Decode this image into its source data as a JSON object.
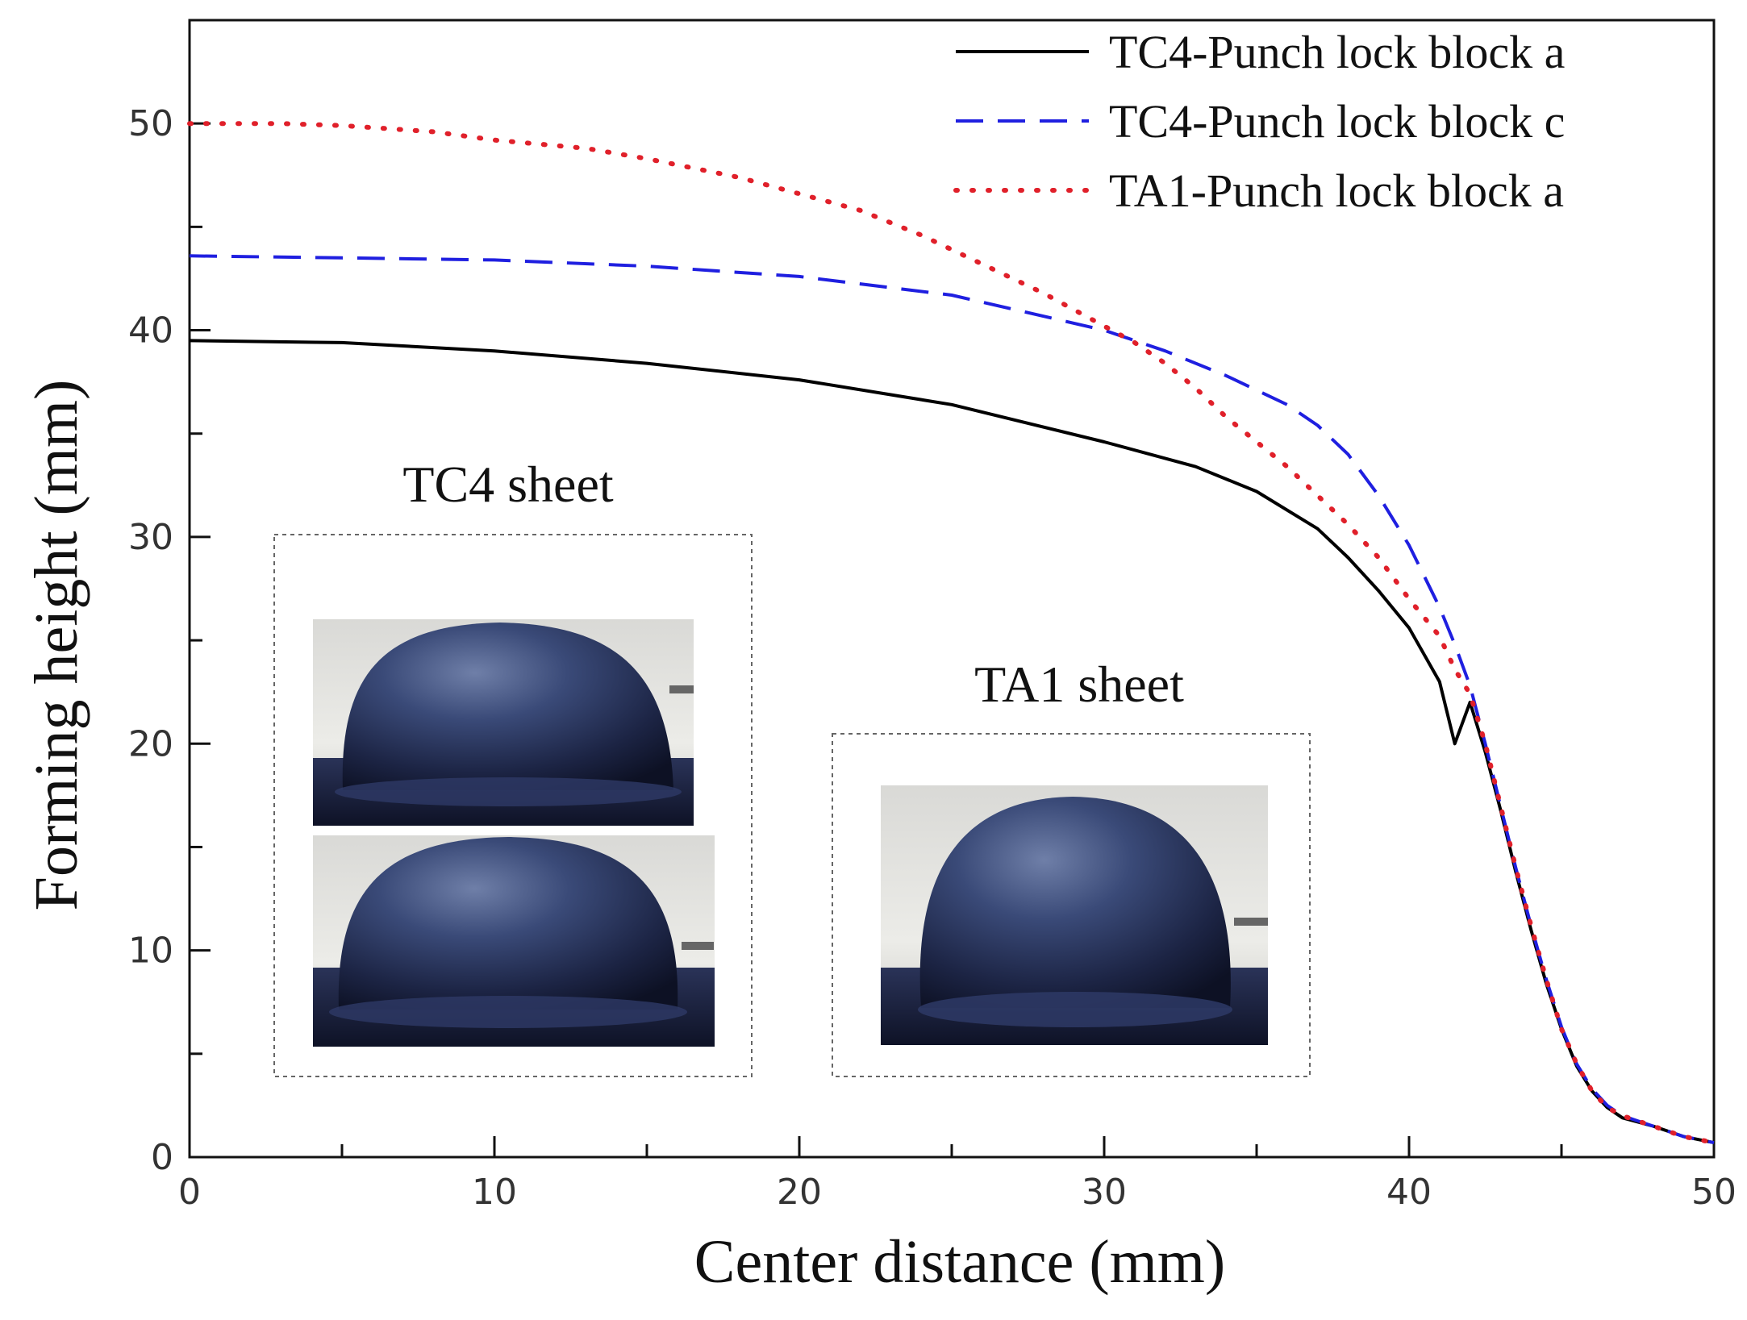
{
  "chart_data": {
    "type": "line",
    "xlabel": "Center distance (mm)",
    "ylabel": "Forming height (mm)",
    "xlim": [
      0,
      50
    ],
    "ylim": [
      0,
      55
    ],
    "xticks": [
      0,
      10,
      20,
      30,
      40,
      50
    ],
    "yticks": [
      0,
      10,
      20,
      30,
      40,
      50
    ],
    "grid": false,
    "legend_position": "top-right",
    "series": [
      {
        "name": "TC4-Punch lock block a",
        "color": "#000000",
        "style": "solid",
        "x": [
          0,
          5,
          10,
          15,
          20,
          25,
          30,
          33,
          35,
          37,
          38,
          39,
          40,
          41,
          41.5,
          42,
          42.5,
          43,
          43.5,
          44,
          44.5,
          45,
          45.5,
          46,
          46.5,
          47,
          48,
          49,
          50
        ],
        "y": [
          39.5,
          39.4,
          39.0,
          38.4,
          37.6,
          36.4,
          34.6,
          33.4,
          32.2,
          30.4,
          29.0,
          27.4,
          25.6,
          23.0,
          20.0,
          22.0,
          19.6,
          16.8,
          13.8,
          11.0,
          8.4,
          6.2,
          4.4,
          3.2,
          2.4,
          1.9,
          1.5,
          1.0,
          0.7
        ]
      },
      {
        "name": "TC4-Punch lock block c",
        "color": "#1f1fe0",
        "style": "dashed",
        "x": [
          0,
          5,
          10,
          15,
          20,
          25,
          30,
          32,
          34,
          36,
          37,
          38,
          39,
          40,
          41,
          41.5,
          42,
          42.5,
          43,
          43.5,
          44,
          44.5,
          45,
          45.5,
          46,
          46.5,
          47,
          48,
          49,
          50
        ],
        "y": [
          43.6,
          43.5,
          43.4,
          43.1,
          42.6,
          41.7,
          40.0,
          39.0,
          37.8,
          36.4,
          35.4,
          34.0,
          32.0,
          29.6,
          26.6,
          24.8,
          22.8,
          20.0,
          17.0,
          14.0,
          11.2,
          8.6,
          6.3,
          4.5,
          3.3,
          2.5,
          2.0,
          1.5,
          1.0,
          0.7
        ]
      },
      {
        "name": "TA1-Punch lock block a",
        "color": "#e0202a",
        "style": "dotted",
        "x": [
          0,
          3,
          5,
          8,
          10,
          13,
          15,
          18,
          20,
          22,
          24,
          26,
          28,
          30,
          31,
          32,
          33,
          34,
          35,
          36,
          37,
          38,
          39,
          40,
          41,
          41.5,
          42,
          42.5,
          43,
          43.5,
          44,
          44.5,
          45,
          45.5,
          46,
          46.5,
          47,
          48,
          49,
          50
        ],
        "y": [
          50.0,
          50.0,
          49.9,
          49.6,
          49.2,
          48.8,
          48.3,
          47.4,
          46.6,
          45.8,
          44.6,
          43.2,
          41.8,
          40.2,
          39.4,
          38.4,
          37.2,
          35.8,
          34.6,
          33.4,
          32.0,
          30.6,
          29.0,
          27.0,
          25.2,
          23.6,
          22.4,
          20.0,
          17.0,
          14.0,
          11.2,
          8.6,
          6.2,
          4.5,
          3.2,
          2.4,
          2.0,
          1.5,
          1.0,
          0.7
        ]
      }
    ]
  },
  "insets": [
    {
      "title": "TC4 sheet",
      "photo_count": 2
    },
    {
      "title": "TA1 sheet",
      "photo_count": 1
    }
  ]
}
